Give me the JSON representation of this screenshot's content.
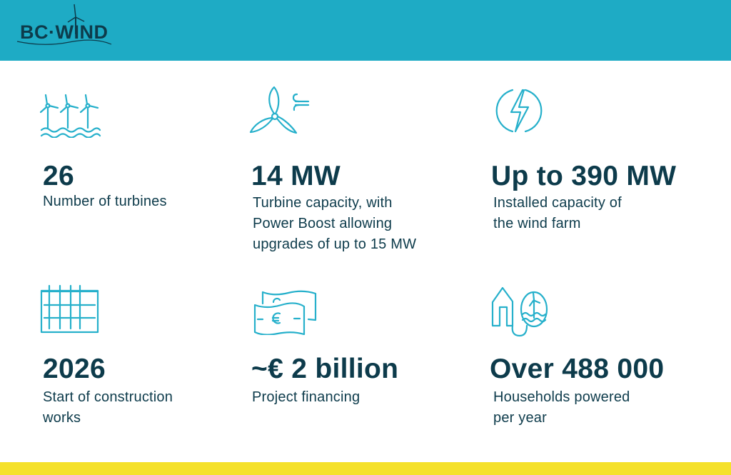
{
  "header": {
    "logo_text": "BC·WIND",
    "background": "#1eabc5"
  },
  "stats": [
    {
      "icon": "offshore-turbines-icon",
      "value": "26",
      "label": "Number of turbines"
    },
    {
      "icon": "turbine-wind-icon",
      "value": "14 MW",
      "label": "Turbine capacity, with\nPower Boost allowing\nupgrades of up to 15 MW"
    },
    {
      "icon": "lightning-icon",
      "value": "Up to 390 MW",
      "label": "Installed capacity of\nthe wind farm"
    },
    {
      "icon": "calendar-icon",
      "value": "2026",
      "label": "Start of construction\nworks"
    },
    {
      "icon": "euro-banknotes-icon",
      "value": "~€ 2 billion",
      "label": "Project financing"
    },
    {
      "icon": "house-plug-turbine-icon",
      "value": "Over 488 000",
      "label": "Households powered\nper year"
    }
  ],
  "colors": {
    "text": "#0d3b4b",
    "icon": "#26b0cb",
    "footer": "#f5e12b"
  }
}
